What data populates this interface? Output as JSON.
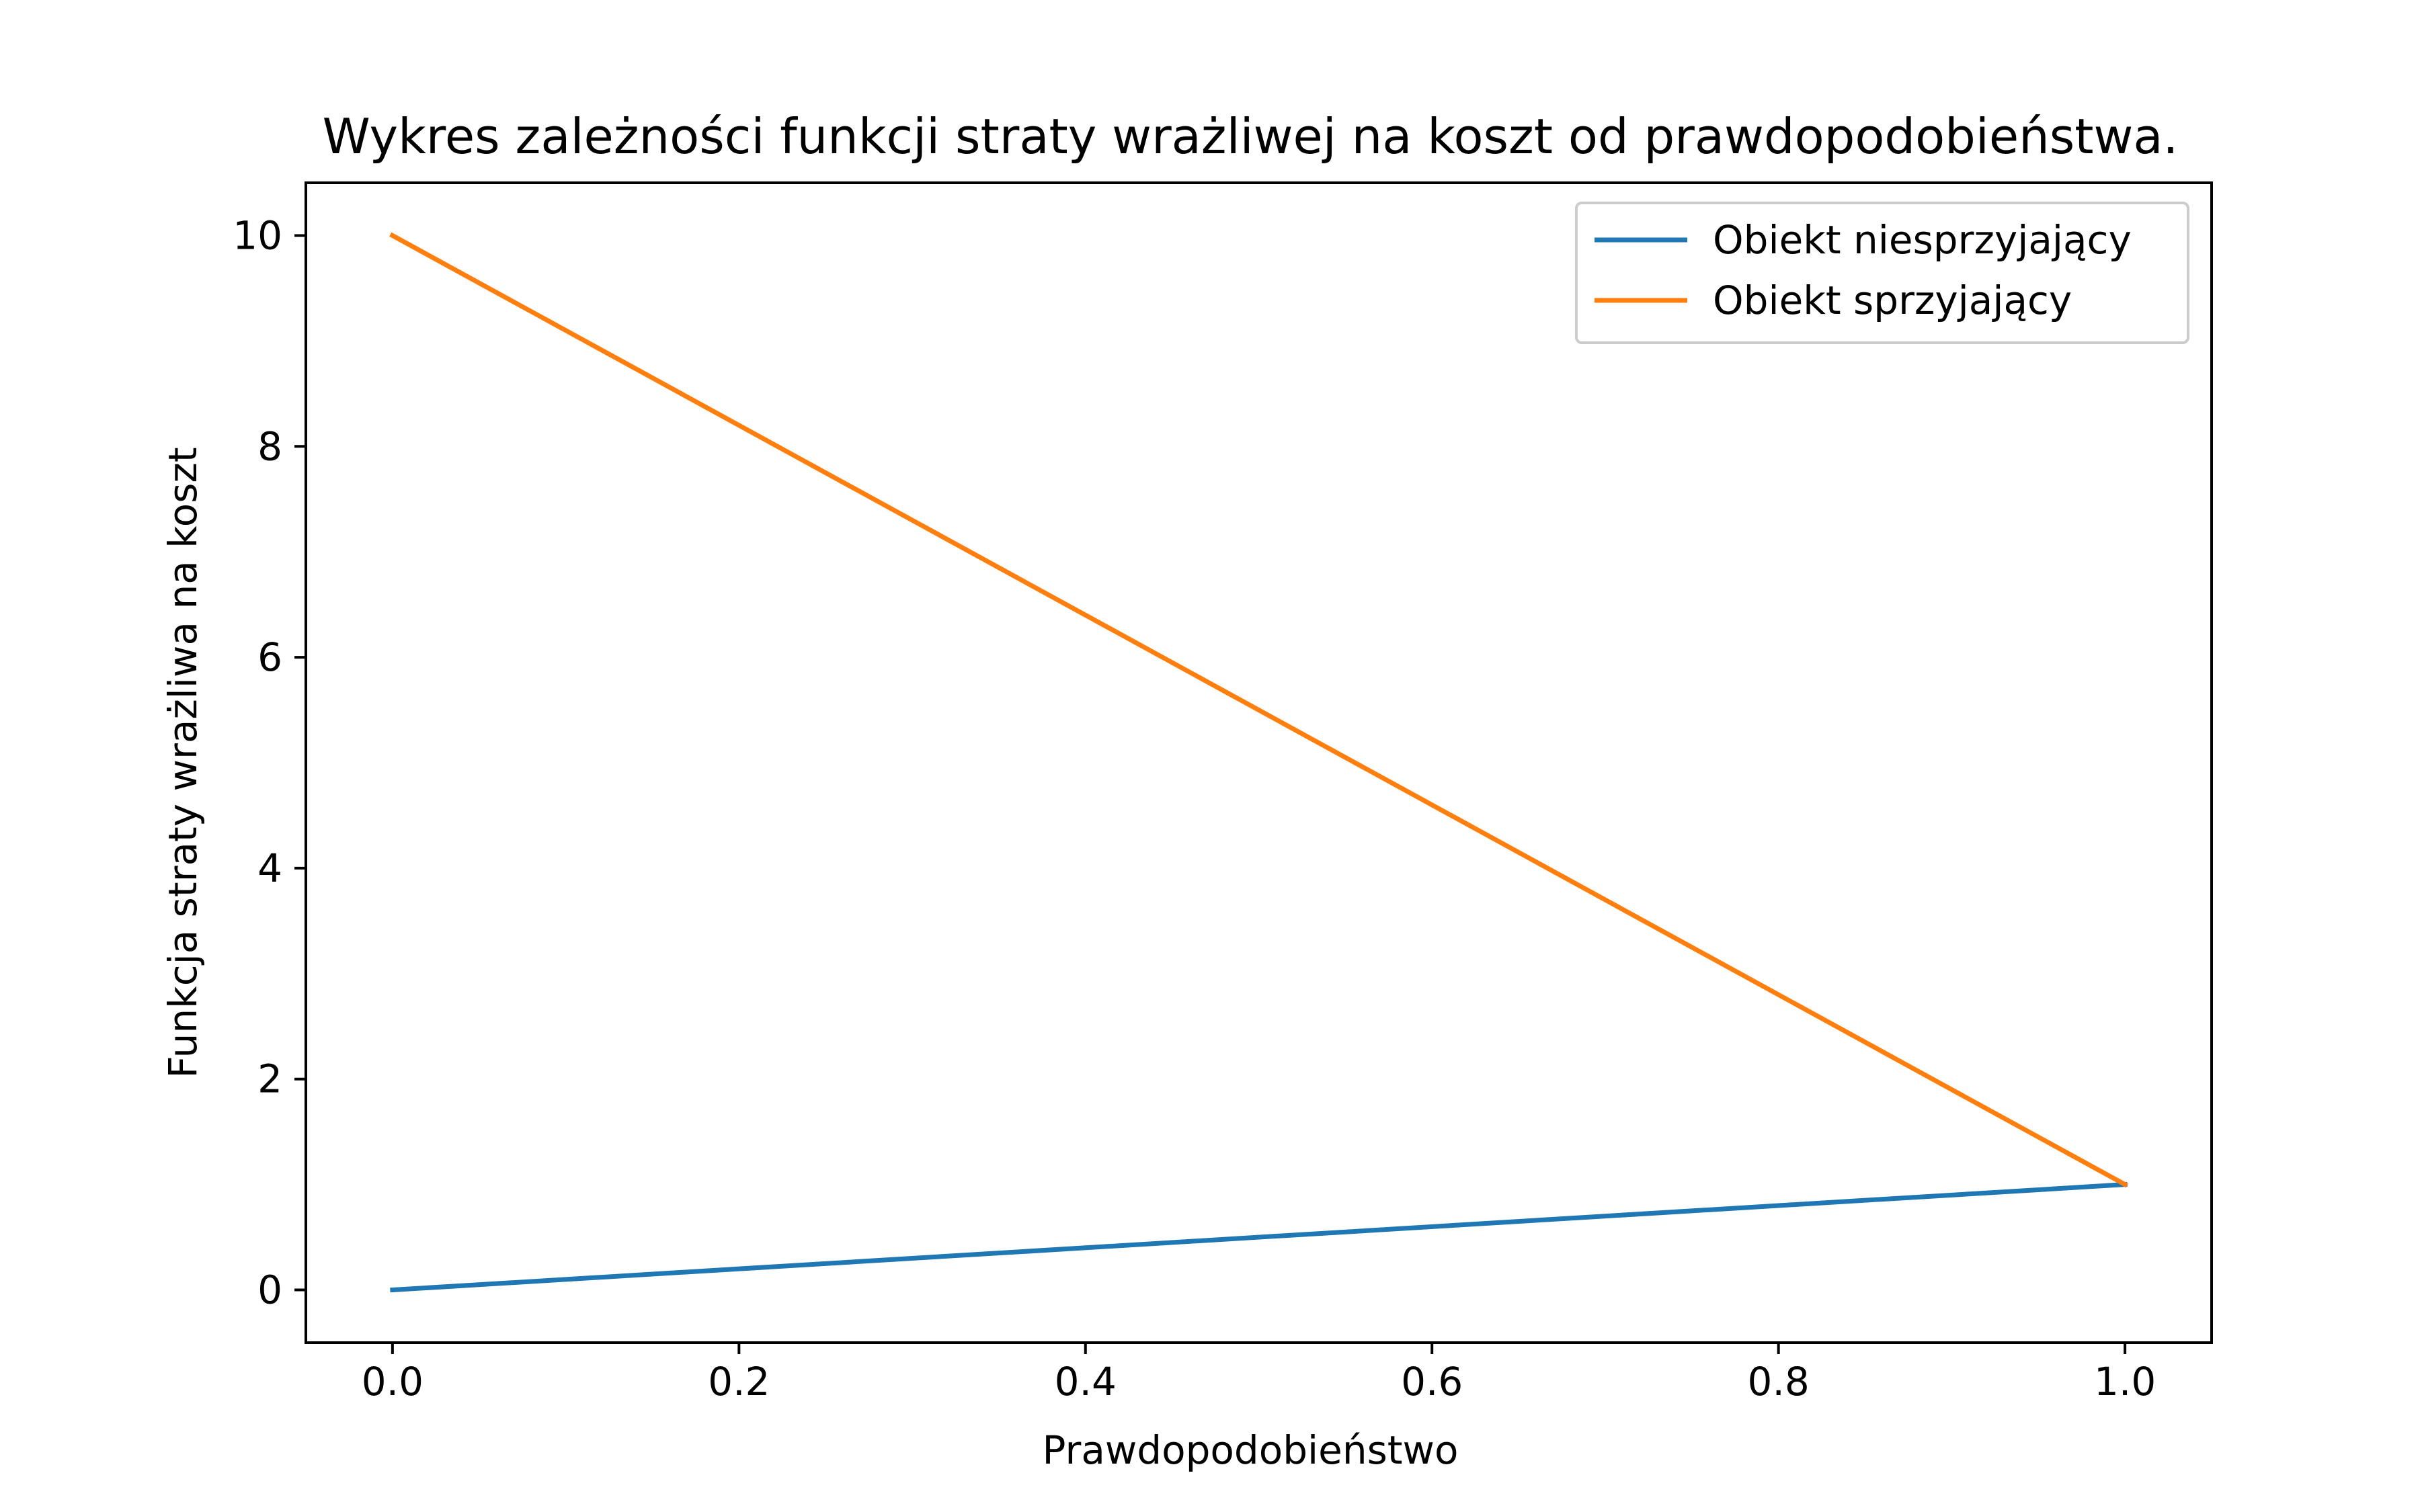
{
  "chart_data": {
    "type": "line",
    "title": "Wykres zależności funkcji straty wrażliwej na koszt od prawdopodobieństwa.",
    "xlabel": "Prawdopodobieństwo",
    "ylabel": "Funkcja straty wrażliwa na koszt",
    "xlim": [
      -0.05,
      1.05
    ],
    "ylim": [
      -0.5,
      10.5
    ],
    "xticks": [
      0.0,
      0.2,
      0.4,
      0.6,
      0.8,
      1.0
    ],
    "xtick_labels": [
      "0.0",
      "0.2",
      "0.4",
      "0.6",
      "0.8",
      "1.0"
    ],
    "yticks": [
      0,
      2,
      4,
      6,
      8,
      10
    ],
    "ytick_labels": [
      "0",
      "2",
      "4",
      "6",
      "8",
      "10"
    ],
    "grid": false,
    "legend_position": "top-right",
    "series": [
      {
        "name": "Obiekt niesprzyjający",
        "color": "#1f77b4",
        "x": [
          0.0,
          1.0
        ],
        "y": [
          0,
          1
        ]
      },
      {
        "name": "Obiekt sprzyjający",
        "color": "#ff7f0e",
        "x": [
          0.0,
          1.0
        ],
        "y": [
          10,
          1
        ]
      }
    ]
  }
}
